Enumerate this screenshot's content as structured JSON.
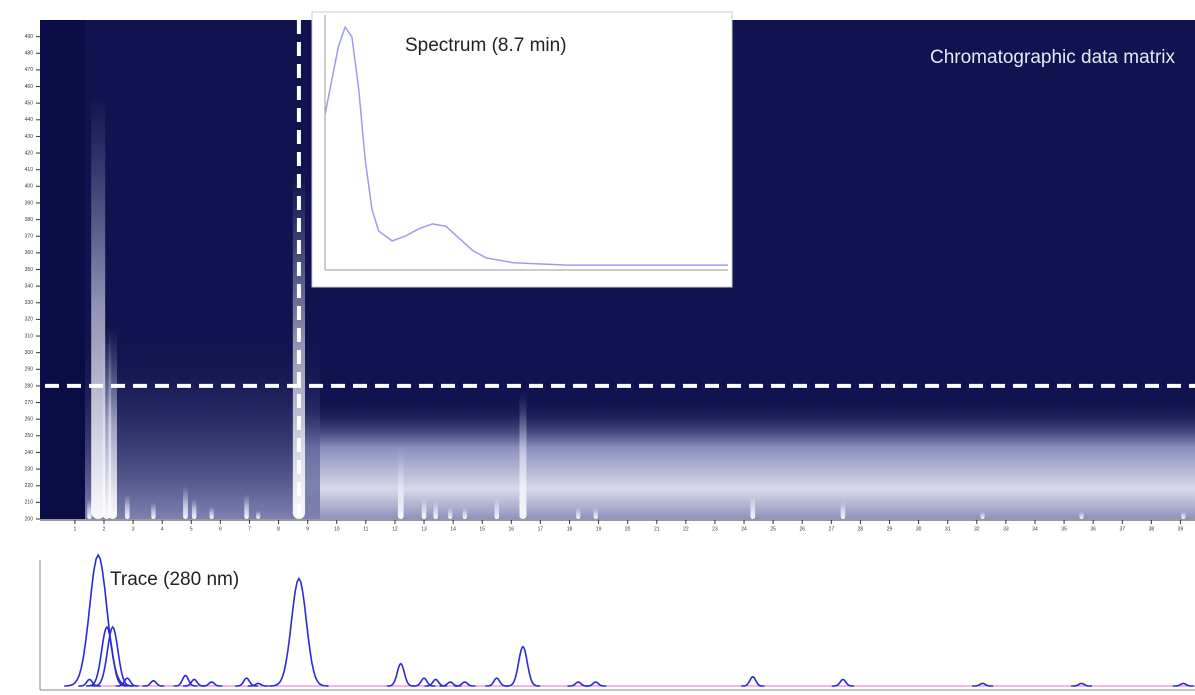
{
  "chart_data": [
    {
      "type": "heatmap",
      "title": "Chromatographic data matrix",
      "xlim": [
        -0.2,
        39.5
      ],
      "ylim": [
        200,
        500
      ],
      "xticks": [
        1,
        2,
        3,
        4,
        5,
        6,
        7,
        8,
        9,
        10,
        11,
        12,
        13,
        14,
        15,
        16,
        17,
        18,
        19,
        20,
        21,
        22,
        23,
        24,
        25,
        26,
        27,
        28,
        29,
        30,
        31,
        32,
        33,
        34,
        35,
        36,
        37,
        38,
        39
      ],
      "yticks": [
        200,
        210,
        220,
        230,
        240,
        250,
        260,
        270,
        280,
        290,
        300,
        310,
        320,
        330,
        340,
        350,
        360,
        370,
        380,
        390,
        400,
        410,
        420,
        430,
        440,
        450,
        460,
        470,
        480,
        490
      ],
      "crosshair_time": 8.7,
      "crosshair_wavelength": 280
    },
    {
      "type": "line",
      "title": "Spectrum (8.7 min)",
      "x": [
        200,
        205,
        210,
        215,
        220,
        225,
        230,
        235,
        240,
        250,
        260,
        270,
        280,
        290,
        300,
        310,
        320,
        340,
        380,
        450,
        500
      ],
      "values": [
        64,
        78,
        92,
        100,
        96,
        75,
        45,
        25,
        16,
        12,
        14,
        17,
        19,
        18,
        13,
        8,
        5,
        3,
        2,
        2,
        2
      ],
      "xlim": [
        200,
        500
      ],
      "ylim": [
        0,
        105
      ],
      "color": "#9a9cf0"
    },
    {
      "type": "chromatogram",
      "title": "Trace (280 nm)",
      "x": [
        1.5,
        1.8,
        2.1,
        2.3,
        2.8,
        3.7,
        4.8,
        5.1,
        5.7,
        6.9,
        7.3,
        8.7,
        12.2,
        13.0,
        13.4,
        13.9,
        14.4,
        15.5,
        16.4,
        18.3,
        18.9,
        24.3,
        27.4,
        32.2,
        35.6,
        39.1
      ],
      "values": [
        5,
        100,
        45,
        45,
        6,
        4,
        8,
        5,
        3,
        6,
        2,
        82,
        17,
        6,
        5,
        3,
        3,
        6,
        30,
        3,
        3,
        7,
        5,
        2,
        2,
        2
      ],
      "xlim": [
        -0.2,
        39.5
      ],
      "ylim": [
        0,
        100
      ],
      "color": "#2a2ad8"
    }
  ]
}
